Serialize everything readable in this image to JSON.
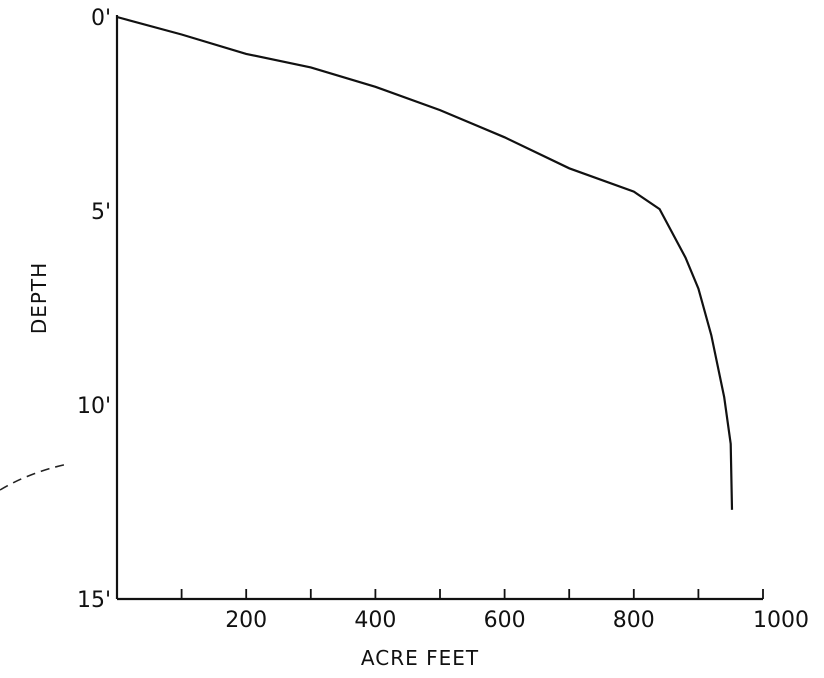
{
  "chart_data": {
    "type": "line",
    "title": "",
    "xlabel": "ACRE FEET",
    "ylabel": "DEPTH",
    "xlim": [
      0,
      1000
    ],
    "ylim": [
      0,
      15
    ],
    "y_inverted": true,
    "grid": false,
    "x_tick_values": [
      100,
      200,
      300,
      400,
      500,
      600,
      700,
      800,
      900,
      1000
    ],
    "x_tick_labels": [
      {
        "value": 200,
        "text": "200"
      },
      {
        "value": 400,
        "text": "400"
      },
      {
        "value": 600,
        "text": "600"
      },
      {
        "value": 800,
        "text": "800"
      },
      {
        "value": 1000,
        "text": "1000"
      }
    ],
    "y_tick_labels": [
      {
        "value": 0,
        "text": "0'"
      },
      {
        "value": 5,
        "text": "5'"
      },
      {
        "value": 10,
        "text": "10'"
      },
      {
        "value": 15,
        "text": "15'"
      }
    ],
    "series": [
      {
        "x": [
          0,
          100,
          200,
          300,
          400,
          500,
          600,
          700,
          800,
          840,
          880,
          900,
          920,
          940,
          950,
          952
        ],
        "y": [
          0,
          0.45,
          0.95,
          1.3,
          1.8,
          2.4,
          3.1,
          3.9,
          4.5,
          4.95,
          6.2,
          7.0,
          8.2,
          9.8,
          11.0,
          12.7
        ]
      }
    ]
  }
}
